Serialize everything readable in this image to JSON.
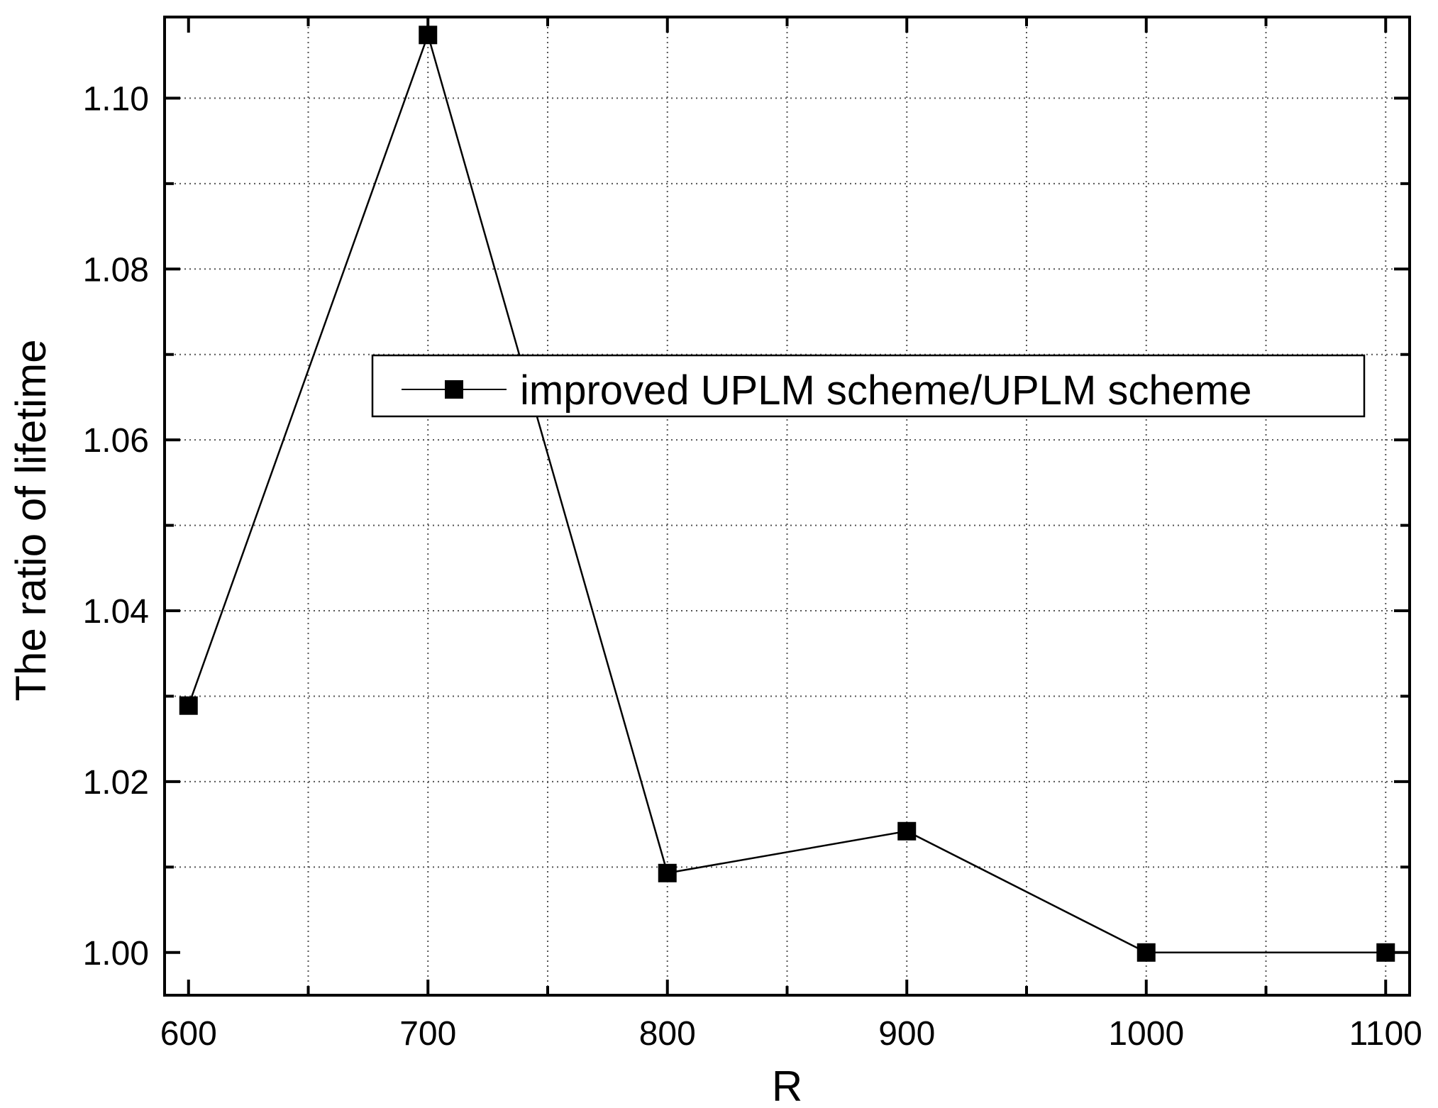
{
  "chart_data": {
    "type": "line",
    "title": "",
    "xlabel": "R",
    "ylabel": "The ratio of lifetime",
    "xlim": [
      590,
      1110
    ],
    "ylim": [
      0.995,
      1.1095
    ],
    "xticks": [
      600,
      700,
      800,
      900,
      1000,
      1100
    ],
    "xtick_labels": [
      "600",
      "700",
      "800",
      "900",
      "1000",
      "1100"
    ],
    "xminor": [
      650,
      750,
      850,
      950,
      1050
    ],
    "yticks": [
      1.0,
      1.02,
      1.04,
      1.06,
      1.08,
      1.1
    ],
    "ytick_labels": [
      "1.00",
      "1.02",
      "1.04",
      "1.06",
      "1.08",
      "1.10"
    ],
    "yminor": [
      1.01,
      1.03,
      1.05,
      1.07,
      1.09
    ],
    "grid": true,
    "legend_position": "upper-middle",
    "series": [
      {
        "name": "improved UPLM scheme/UPLM scheme",
        "marker": "square",
        "color": "#000000",
        "x": [
          600,
          700,
          800,
          900,
          1000,
          1100
        ],
        "y": [
          1.0289,
          1.1074,
          1.0093,
          1.0142,
          1.0,
          1.0
        ]
      }
    ]
  }
}
